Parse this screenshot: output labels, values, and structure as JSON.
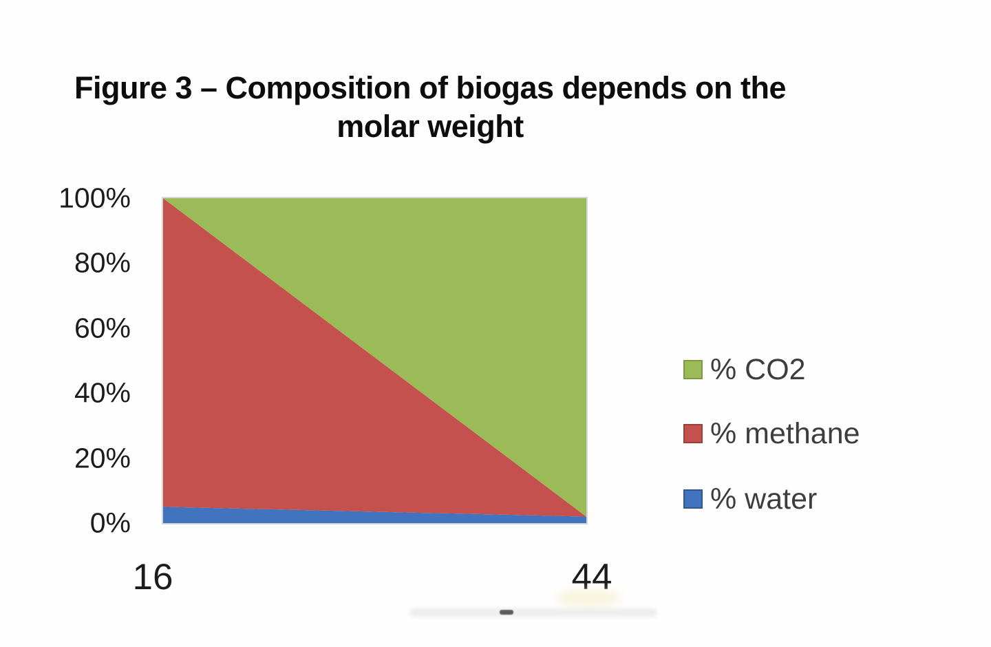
{
  "title": {
    "line1": "Figure 3 – Composition of biogas depends on the",
    "line2": "molar weight"
  },
  "chart_data": {
    "type": "area",
    "stacked_percent": true,
    "title": "Figure 3 – Composition of biogas depends on the molar weight",
    "xlabel": "",
    "ylabel": "",
    "x": [
      16,
      44
    ],
    "x_tick_labels": [
      "16",
      "44"
    ],
    "y_tick_labels": [
      "100%",
      "80%",
      "60%",
      "40%",
      "20%",
      "0%"
    ],
    "ylim": [
      0,
      100
    ],
    "grid": false,
    "legend_position": "right",
    "series": [
      {
        "key": "water",
        "name": "% water",
        "color": "#4173BE",
        "values": [
          5,
          2
        ]
      },
      {
        "key": "methane",
        "name": "% methane",
        "color": "#C4514D",
        "values": [
          95,
          0
        ]
      },
      {
        "key": "co2",
        "name": "% CO2",
        "color": "#9ABB57",
        "values": [
          0,
          98
        ]
      }
    ],
    "legend": [
      {
        "label": "% CO2",
        "color": "#9ABB57",
        "border": "#7d9a41"
      },
      {
        "label": "% methane",
        "color": "#C4514D",
        "border": "#9e3d3a"
      },
      {
        "label": "% water",
        "color": "#4173BE",
        "border": "#2f578f"
      }
    ],
    "colors": {
      "co2_green": "#9ABB57",
      "methane_red": "#C4514D",
      "water_blue": "#4173BE"
    }
  }
}
